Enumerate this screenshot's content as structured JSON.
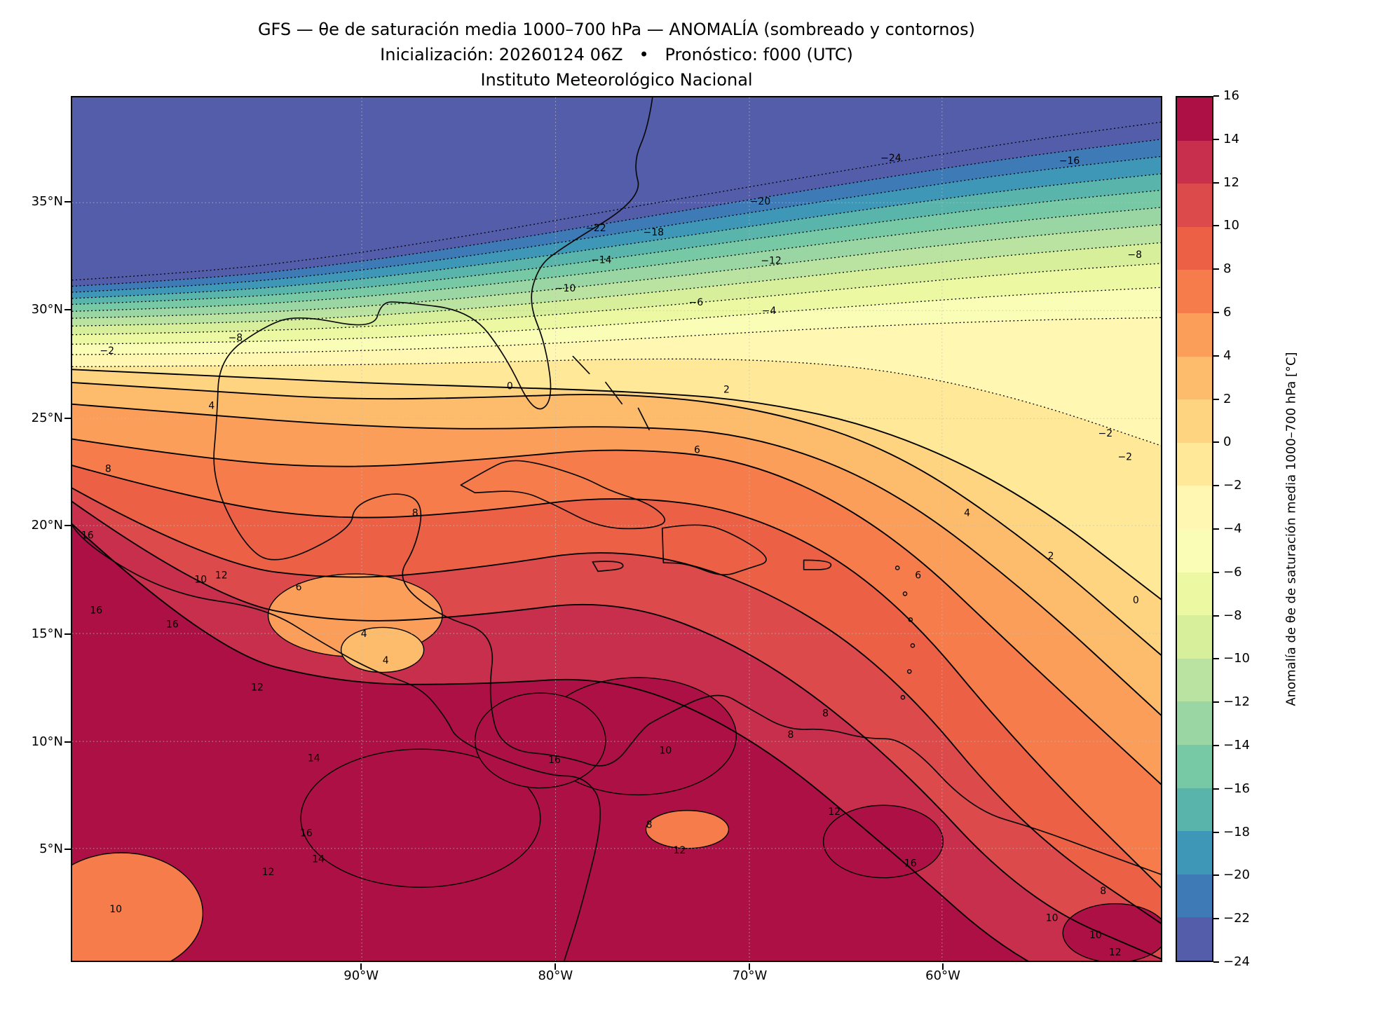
{
  "title": {
    "line1": "GFS — θe de saturación media 1000–700 hPa — ANOMALÍA (sombreado y contornos)",
    "line2": "Inicialización: 20260124 06Z   •   Pronóstico: f000 (UTC)",
    "line3": "Instituto Meteorológico Nacional"
  },
  "axes": {
    "lat_ticks": [
      {
        "label": "35°N",
        "f": 0.122
      },
      {
        "label": "30°N",
        "f": 0.247
      },
      {
        "label": "25°N",
        "f": 0.372
      },
      {
        "label": "20°N",
        "f": 0.496
      },
      {
        "label": "15°N",
        "f": 0.621
      },
      {
        "label": "10°N",
        "f": 0.746
      },
      {
        "label": "5°N",
        "f": 0.87
      }
    ],
    "lon_ticks": [
      {
        "label": "90°W",
        "f": 0.266
      },
      {
        "label": "80°W",
        "f": 0.444
      },
      {
        "label": "70°W",
        "f": 0.622
      },
      {
        "label": "60°W",
        "f": 0.799
      }
    ]
  },
  "colorbar": {
    "label": "Anomalía de θe de saturación media 1000–700 hPa [°C]",
    "ticks": [
      "16",
      "14",
      "12",
      "10",
      "8",
      "6",
      "4",
      "2",
      "0",
      "−2",
      "−4",
      "−6",
      "−8",
      "−10",
      "−12",
      "−14",
      "−16",
      "−18",
      "−20",
      "−22",
      "−24"
    ]
  },
  "chart_data": {
    "type": "heatmap",
    "subtype": "filled_contour_map",
    "title": "GFS — θe de saturación media 1000–700 hPa — ANOMALÍA (sombreado y contornos)",
    "variable": "Anomalía de θe de saturación media 1000–700 hPa",
    "units": "°C",
    "levels": [
      -24,
      -22,
      -20,
      -18,
      -16,
      -14,
      -12,
      -10,
      -8,
      -6,
      -4,
      -2,
      0,
      2,
      4,
      6,
      8,
      10,
      12,
      14,
      16
    ],
    "band_colors": [
      "#535da9",
      "#3d7ab6",
      "#3f97b7",
      "#59b4ab",
      "#77c9a5",
      "#9ad6a4",
      "#bae3a1",
      "#d7ef9b",
      "#ecf8a2",
      "#f9fdb5",
      "#fff7b2",
      "#ffe898",
      "#fed481",
      "#fdbb6c",
      "#fb9e5a",
      "#f67d4b",
      "#ec6146",
      "#dd4a4c",
      "#c72f4c",
      "#ac1045"
    ],
    "x_stations": [
      0,
      0.125,
      0.25,
      0.375,
      0.5,
      0.625,
      0.75,
      0.875,
      1
    ],
    "contours": [
      {
        "level": -24,
        "y": [
          0.212,
          0.202,
          0.183,
          0.158,
          0.13,
          0.103,
          0.076,
          0.05,
          0.028
        ]
      },
      {
        "level": -22,
        "y": [
          0.219,
          0.21,
          0.193,
          0.17,
          0.144,
          0.118,
          0.092,
          0.068,
          0.048
        ]
      },
      {
        "level": -20,
        "y": [
          0.226,
          0.218,
          0.203,
          0.182,
          0.158,
          0.133,
          0.109,
          0.086,
          0.068
        ]
      },
      {
        "level": -18,
        "y": [
          0.233,
          0.226,
          0.213,
          0.194,
          0.172,
          0.149,
          0.126,
          0.105,
          0.088
        ]
      },
      {
        "level": -16,
        "y": [
          0.24,
          0.234,
          0.223,
          0.206,
          0.186,
          0.164,
          0.143,
          0.123,
          0.107
        ]
      },
      {
        "level": -14,
        "y": [
          0.248,
          0.243,
          0.233,
          0.218,
          0.2,
          0.18,
          0.16,
          0.142,
          0.127
        ]
      },
      {
        "level": -12,
        "y": [
          0.256,
          0.252,
          0.244,
          0.231,
          0.215,
          0.197,
          0.178,
          0.161,
          0.147
        ]
      },
      {
        "level": -10,
        "y": [
          0.265,
          0.262,
          0.255,
          0.244,
          0.23,
          0.214,
          0.197,
          0.181,
          0.168
        ]
      },
      {
        "level": -8,
        "y": [
          0.275,
          0.272,
          0.267,
          0.258,
          0.246,
          0.232,
          0.217,
          0.203,
          0.192
        ]
      },
      {
        "level": -6,
        "y": [
          0.286,
          0.284,
          0.28,
          0.273,
          0.263,
          0.251,
          0.239,
          0.228,
          0.22
        ]
      },
      {
        "level": -4,
        "y": [
          0.298,
          0.297,
          0.294,
          0.289,
          0.281,
          0.272,
          0.264,
          0.258,
          0.255
        ]
      },
      {
        "level": -2,
        "y": [
          0.312,
          0.311,
          0.31,
          0.307,
          0.303,
          0.303,
          0.315,
          0.35,
          0.405
        ]
      },
      {
        "level": 0,
        "y": [
          0.315,
          0.322,
          0.33,
          0.335,
          0.34,
          0.35,
          0.385,
          0.46,
          0.585
        ]
      },
      {
        "level": 2,
        "y": [
          0.33,
          0.34,
          0.35,
          0.348,
          0.342,
          0.358,
          0.405,
          0.51,
          0.65
        ]
      },
      {
        "level": 4,
        "y": [
          0.355,
          0.368,
          0.38,
          0.385,
          0.38,
          0.39,
          0.45,
          0.57,
          0.72
        ]
      },
      {
        "level": 6,
        "y": [
          0.395,
          0.42,
          0.43,
          0.42,
          0.405,
          0.42,
          0.5,
          0.65,
          0.8
        ]
      },
      {
        "level": 8,
        "y": [
          0.425,
          0.47,
          0.49,
          0.48,
          0.46,
          0.48,
          0.57,
          0.76,
          0.92
        ]
      },
      {
        "level": 10,
        "y": [
          0.45,
          0.54,
          0.56,
          0.545,
          0.52,
          0.56,
          0.66,
          0.85,
          0.96
        ]
      },
      {
        "level": 12,
        "y": [
          0.465,
          0.58,
          0.61,
          0.6,
          0.58,
          0.64,
          0.76,
          0.93,
          1.0
        ]
      },
      {
        "level": 14,
        "y": [
          0.49,
          0.64,
          0.68,
          0.68,
          0.67,
          0.74,
          0.87,
          1.01,
          1.06
        ]
      }
    ],
    "pockets": [
      {
        "x": 0.045,
        "y": 0.945,
        "rx": 0.075,
        "ry": 0.07,
        "color": "#f67d4b"
      },
      {
        "x": 0.26,
        "y": 0.6,
        "rx": 0.08,
        "ry": 0.048,
        "color": "#fb9e5a"
      },
      {
        "x": 0.285,
        "y": 0.64,
        "rx": 0.038,
        "ry": 0.026,
        "color": "#fdbb6c"
      },
      {
        "x": 0.52,
        "y": 0.74,
        "rx": 0.09,
        "ry": 0.068,
        "color": "#ac1045"
      },
      {
        "x": 0.32,
        "y": 0.835,
        "rx": 0.11,
        "ry": 0.08,
        "color": "#ac1045"
      },
      {
        "x": 0.43,
        "y": 0.745,
        "rx": 0.06,
        "ry": 0.055,
        "color": "#ac1045"
      },
      {
        "x": 0.745,
        "y": 0.862,
        "rx": 0.055,
        "ry": 0.042,
        "color": "#ac1045"
      },
      {
        "x": 0.958,
        "y": 0.968,
        "rx": 0.048,
        "ry": 0.034,
        "color": "#ac1045"
      },
      {
        "x": 0.565,
        "y": 0.848,
        "rx": 0.038,
        "ry": 0.022,
        "color": "#f67d4b"
      }
    ],
    "grid": {
      "lat": [
        0.122,
        0.247,
        0.372,
        0.496,
        0.621,
        0.746,
        0.87
      ],
      "lon": [
        0.266,
        0.444,
        0.622,
        0.799
      ]
    },
    "coastlines": [
      {
        "closed": false,
        "pts": [
          [
            0.533,
            0.0
          ],
          [
            0.529,
            0.035
          ],
          [
            0.515,
            0.075
          ],
          [
            0.524,
            0.117
          ],
          [
            0.446,
            0.177
          ],
          [
            0.428,
            0.197
          ],
          [
            0.419,
            0.237
          ],
          [
            0.435,
            0.287
          ],
          [
            0.442,
            0.352
          ],
          [
            0.424,
            0.367
          ],
          [
            0.398,
            0.299
          ],
          [
            0.366,
            0.247
          ],
          [
            0.302,
            0.237
          ],
          [
            0.284,
            0.237
          ],
          [
            0.277,
            0.269
          ],
          [
            0.208,
            0.252
          ],
          [
            0.178,
            0.264
          ],
          [
            0.135,
            0.302
          ],
          [
            0.133,
            0.372
          ],
          [
            0.128,
            0.441
          ],
          [
            0.156,
            0.516
          ],
          [
            0.186,
            0.544
          ],
          [
            0.256,
            0.501
          ],
          [
            0.259,
            0.471
          ],
          [
            0.298,
            0.456
          ],
          [
            0.323,
            0.469
          ],
          [
            0.316,
            0.52
          ],
          [
            0.297,
            0.559
          ],
          [
            0.337,
            0.601
          ],
          [
            0.389,
            0.621
          ],
          [
            0.382,
            0.696
          ],
          [
            0.394,
            0.756
          ],
          [
            0.453,
            0.763
          ],
          [
            0.494,
            0.781
          ],
          [
            0.524,
            0.731
          ],
          [
            0.536,
            0.721
          ],
          [
            0.592,
            0.686
          ],
          [
            0.622,
            0.708
          ],
          [
            0.657,
            0.733
          ],
          [
            0.693,
            0.731
          ],
          [
            0.728,
            0.743
          ],
          [
            0.766,
            0.743
          ],
          [
            0.826,
            0.825
          ],
          [
            0.888,
            0.848
          ],
          [
            0.941,
            0.873
          ],
          [
            1.0,
            0.9
          ]
        ]
      },
      {
        "closed": false,
        "pts": [
          [
            0.0,
            0.496
          ],
          [
            0.012,
            0.519
          ],
          [
            0.091,
            0.576
          ],
          [
            0.178,
            0.591
          ],
          [
            0.231,
            0.633
          ],
          [
            0.279,
            0.666
          ],
          [
            0.32,
            0.683
          ],
          [
            0.343,
            0.718
          ],
          [
            0.355,
            0.748
          ],
          [
            0.435,
            0.786
          ],
          [
            0.471,
            0.786
          ],
          [
            0.49,
            0.823
          ],
          [
            0.469,
            0.933
          ],
          [
            0.452,
            1.0
          ]
        ]
      },
      {
        "closed": true,
        "pts": [
          [
            0.357,
            0.449
          ],
          [
            0.38,
            0.432
          ],
          [
            0.401,
            0.419
          ],
          [
            0.43,
            0.424
          ],
          [
            0.47,
            0.44
          ],
          [
            0.494,
            0.456
          ],
          [
            0.53,
            0.47
          ],
          [
            0.549,
            0.491
          ],
          [
            0.53,
            0.5
          ],
          [
            0.485,
            0.499
          ],
          [
            0.44,
            0.47
          ],
          [
            0.412,
            0.455
          ],
          [
            0.37,
            0.458
          ]
        ]
      },
      {
        "closed": true,
        "pts": [
          [
            0.542,
            0.499
          ],
          [
            0.575,
            0.492
          ],
          [
            0.607,
            0.505
          ],
          [
            0.645,
            0.536
          ],
          [
            0.62,
            0.546
          ],
          [
            0.597,
            0.556
          ],
          [
            0.565,
            0.54
          ],
          [
            0.543,
            0.539
          ]
        ]
      },
      {
        "closed": true,
        "pts": [
          [
            0.478,
            0.538
          ],
          [
            0.503,
            0.536
          ],
          [
            0.508,
            0.546
          ],
          [
            0.483,
            0.549
          ]
        ]
      },
      {
        "closed": true,
        "pts": [
          [
            0.672,
            0.536
          ],
          [
            0.697,
            0.536
          ],
          [
            0.697,
            0.547
          ],
          [
            0.672,
            0.547
          ]
        ]
      },
      {
        "closed": false,
        "pts": [
          [
            0.46,
            0.3
          ],
          [
            0.475,
            0.32
          ]
        ]
      },
      {
        "closed": false,
        "pts": [
          [
            0.49,
            0.33
          ],
          [
            0.505,
            0.355
          ]
        ]
      },
      {
        "closed": false,
        "pts": [
          [
            0.52,
            0.36
          ],
          [
            0.53,
            0.385
          ]
        ]
      }
    ],
    "islands": [
      {
        "x": 0.758,
        "y": 0.545
      },
      {
        "x": 0.765,
        "y": 0.575
      },
      {
        "x": 0.77,
        "y": 0.605
      },
      {
        "x": 0.772,
        "y": 0.635
      },
      {
        "x": 0.769,
        "y": 0.665
      },
      {
        "x": 0.763,
        "y": 0.695
      }
    ],
    "labels": [
      {
        "v": "−24",
        "x": 0.752,
        "y": 0.074
      },
      {
        "v": "−16",
        "x": 0.916,
        "y": 0.077
      },
      {
        "v": "−20",
        "x": 0.632,
        "y": 0.124
      },
      {
        "v": "−22",
        "x": 0.481,
        "y": 0.155
      },
      {
        "v": "−18",
        "x": 0.534,
        "y": 0.16
      },
      {
        "v": "−14",
        "x": 0.486,
        "y": 0.192
      },
      {
        "v": "−12",
        "x": 0.642,
        "y": 0.193
      },
      {
        "v": "−10",
        "x": 0.453,
        "y": 0.225
      },
      {
        "v": "−8",
        "x": 0.976,
        "y": 0.186
      },
      {
        "v": "−6",
        "x": 0.573,
        "y": 0.241
      },
      {
        "v": "−4",
        "x": 0.64,
        "y": 0.251
      },
      {
        "v": "−8",
        "x": 0.15,
        "y": 0.282
      },
      {
        "v": "−2",
        "x": 0.032,
        "y": 0.297
      },
      {
        "v": "−2",
        "x": 0.949,
        "y": 0.393
      },
      {
        "v": "−2",
        "x": 0.967,
        "y": 0.42
      },
      {
        "v": "0",
        "x": 0.402,
        "y": 0.338
      },
      {
        "v": "2",
        "x": 0.601,
        "y": 0.342
      },
      {
        "v": "4",
        "x": 0.128,
        "y": 0.361
      },
      {
        "v": "6",
        "x": 0.574,
        "y": 0.412
      },
      {
        "v": "8",
        "x": 0.315,
        "y": 0.485
      },
      {
        "v": "8",
        "x": 0.033,
        "y": 0.434
      },
      {
        "v": "4",
        "x": 0.822,
        "y": 0.485
      },
      {
        "v": "2",
        "x": 0.899,
        "y": 0.535
      },
      {
        "v": "0",
        "x": 0.977,
        "y": 0.586
      },
      {
        "v": "6",
        "x": 0.777,
        "y": 0.557
      },
      {
        "v": "10",
        "x": 0.118,
        "y": 0.562
      },
      {
        "v": "12",
        "x": 0.137,
        "y": 0.557
      },
      {
        "v": "16",
        "x": 0.014,
        "y": 0.511
      },
      {
        "v": "16",
        "x": 0.022,
        "y": 0.598
      },
      {
        "v": "6",
        "x": 0.208,
        "y": 0.571
      },
      {
        "v": "4",
        "x": 0.268,
        "y": 0.625
      },
      {
        "v": "4",
        "x": 0.288,
        "y": 0.656
      },
      {
        "v": "12",
        "x": 0.17,
        "y": 0.687
      },
      {
        "v": "16",
        "x": 0.092,
        "y": 0.614
      },
      {
        "v": "14",
        "x": 0.222,
        "y": 0.769
      },
      {
        "v": "16",
        "x": 0.215,
        "y": 0.856
      },
      {
        "v": "12",
        "x": 0.18,
        "y": 0.901
      },
      {
        "v": "14",
        "x": 0.226,
        "y": 0.886
      },
      {
        "v": "10",
        "x": 0.04,
        "y": 0.944
      },
      {
        "v": "16",
        "x": 0.443,
        "y": 0.771
      },
      {
        "v": "10",
        "x": 0.545,
        "y": 0.76
      },
      {
        "v": "8",
        "x": 0.53,
        "y": 0.846
      },
      {
        "v": "12",
        "x": 0.558,
        "y": 0.876
      },
      {
        "v": "8",
        "x": 0.66,
        "y": 0.742
      },
      {
        "v": "8",
        "x": 0.692,
        "y": 0.717
      },
      {
        "v": "12",
        "x": 0.7,
        "y": 0.831
      },
      {
        "v": "16",
        "x": 0.77,
        "y": 0.891
      },
      {
        "v": "8",
        "x": 0.947,
        "y": 0.923
      },
      {
        "v": "10",
        "x": 0.9,
        "y": 0.954
      },
      {
        "v": "10",
        "x": 0.94,
        "y": 0.974
      },
      {
        "v": "12",
        "x": 0.958,
        "y": 0.994
      }
    ]
  }
}
